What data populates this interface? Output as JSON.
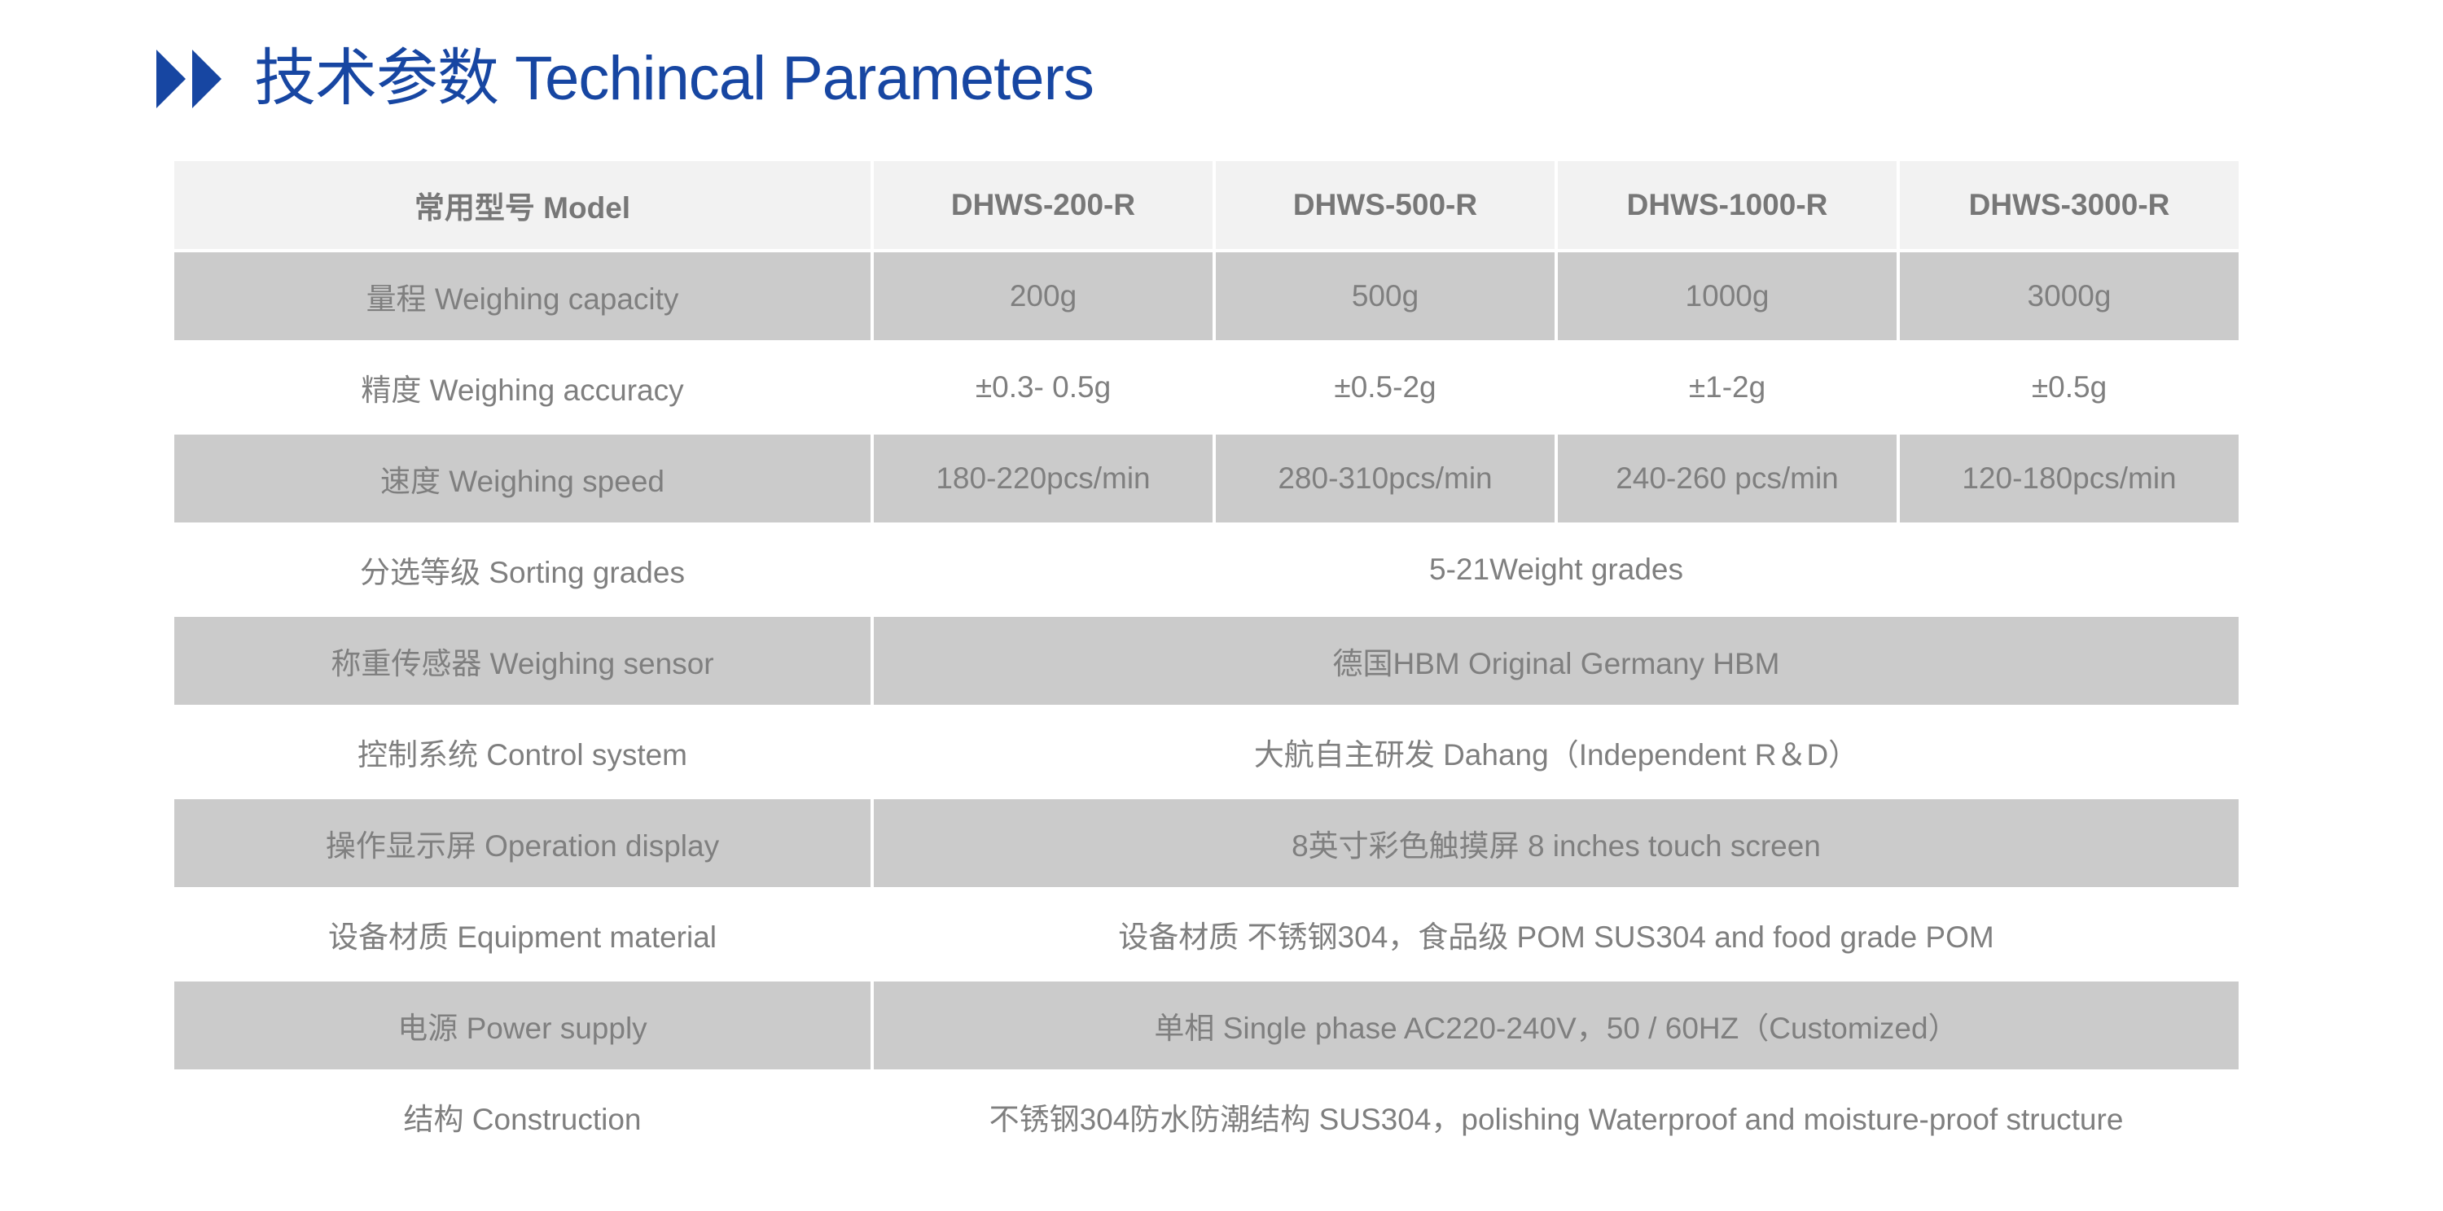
{
  "header": {
    "title": "技术参数 Techincal Parameters",
    "icon": "double-chevron-right-icon",
    "accent_color": "#1746a2"
  },
  "table": {
    "columns": [
      "常用型号 Model",
      "DHWS-200-R",
      "DHWS-500-R",
      "DHWS-1000-R",
      "DHWS-3000-R"
    ],
    "rows": [
      {
        "label": "量程 Weighing capacity",
        "values": [
          "200g",
          "500g",
          "1000g",
          "3000g"
        ]
      },
      {
        "label": "精度 Weighing accuracy",
        "values": [
          "±0.3- 0.5g",
          "±0.5-2g",
          "±1-2g",
          "±0.5g"
        ]
      },
      {
        "label": "速度 Weighing speed",
        "values": [
          "180-220pcs/min",
          "280-310pcs/min",
          "240-260 pcs/min",
          "120-180pcs/min"
        ]
      },
      {
        "label": "分选等级 Sorting grades",
        "span": "5-21Weight grades"
      },
      {
        "label": "称重传感器 Weighing sensor",
        "span": "德国HBM Original Germany HBM"
      },
      {
        "label": "控制系统 Control system",
        "span": "大航自主研发 Dahang（Independent R＆D）"
      },
      {
        "label": "操作显示屏 Operation display",
        "span": "8英寸彩色触摸屏 8 inches touch screen"
      },
      {
        "label": "设备材质 Equipment material",
        "span": "设备材质 不锈钢304，食品级 POM SUS304 and food grade POM"
      },
      {
        "label": "电源 Power supply",
        "span": "单相 Single phase AC220-240V，50 / 60HZ（Customized）"
      },
      {
        "label": "结构 Construction",
        "span": "不锈钢304防水防潮结构 SUS304，polishing Waterproof and moisture-proof structure"
      }
    ]
  }
}
